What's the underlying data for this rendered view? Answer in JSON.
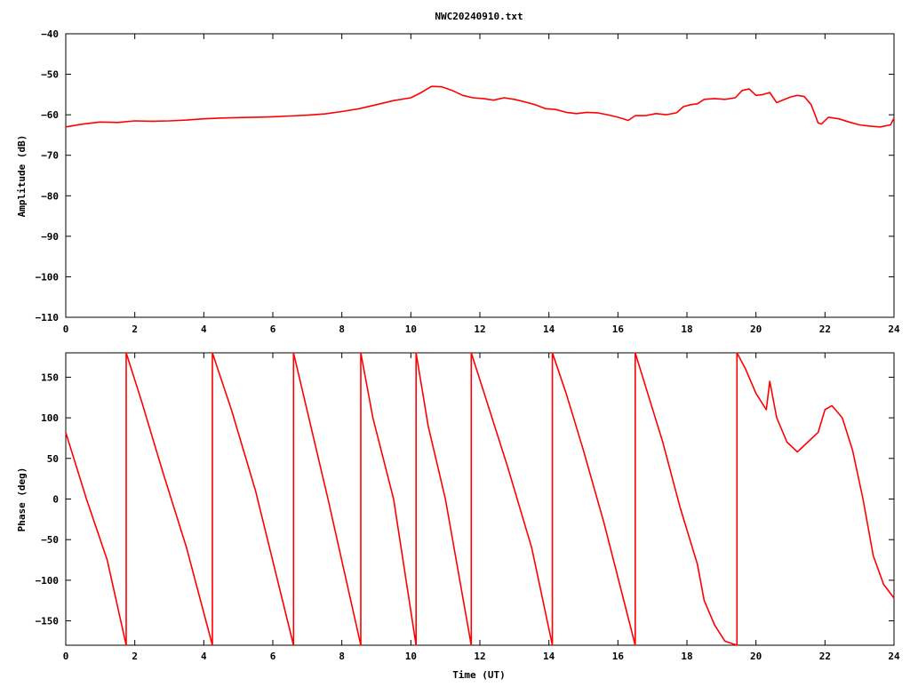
{
  "title": "NWC20240910.txt",
  "colors": {
    "trace": "#ff0000",
    "axes": "#000000",
    "background": "#ffffff"
  },
  "chart_data": [
    {
      "type": "line",
      "ylabel": "Amplitude (dB)",
      "xlabel": "",
      "xlim": [
        0,
        24
      ],
      "ylim": [
        -110,
        -40
      ],
      "xticks": [
        0,
        2,
        4,
        6,
        8,
        10,
        12,
        14,
        16,
        18,
        20,
        22,
        24
      ],
      "yticks": [
        -40,
        -50,
        -60,
        -70,
        -80,
        -90,
        -100,
        -110
      ],
      "grid": false,
      "series": [
        {
          "x": [
            0,
            0.5,
            1,
            1.5,
            2,
            2.5,
            3,
            3.5,
            4,
            4.5,
            5,
            5.5,
            6,
            6.5,
            7,
            7.5,
            8,
            8.5,
            9,
            9.5,
            10,
            10.3,
            10.6,
            10.9,
            11.2,
            11.5,
            11.8,
            12.1,
            12.4,
            12.7,
            13,
            13.3,
            13.6,
            13.9,
            14.2,
            14.5,
            14.8,
            15.1,
            15.4,
            15.7,
            16,
            16.3,
            16.5,
            16.8,
            17.1,
            17.4,
            17.7,
            17.9,
            18.1,
            18.3,
            18.5,
            18.8,
            19.1,
            19.4,
            19.6,
            19.8,
            20,
            20.2,
            20.4,
            20.6,
            20.8,
            21,
            21.2,
            21.4,
            21.6,
            21.8,
            21.9,
            22.1,
            22.4,
            22.7,
            23,
            23.3,
            23.6,
            23.9,
            24
          ],
          "y": [
            -63,
            -62.3,
            -61.8,
            -61.9,
            -61.5,
            -61.6,
            -61.5,
            -61.3,
            -61,
            -60.8,
            -60.7,
            -60.6,
            -60.5,
            -60.3,
            -60.1,
            -59.8,
            -59.2,
            -58.5,
            -57.5,
            -56.5,
            -55.8,
            -54.5,
            -53,
            -53.1,
            -54,
            -55.2,
            -55.8,
            -56,
            -56.4,
            -55.8,
            -56.2,
            -56.8,
            -57.5,
            -58.5,
            -58.7,
            -59.4,
            -59.7,
            -59.4,
            -59.5,
            -60,
            -60.6,
            -61.4,
            -60.2,
            -60.2,
            -59.7,
            -60,
            -59.5,
            -58,
            -57.5,
            -57.3,
            -56.2,
            -56,
            -56.2,
            -55.8,
            -54,
            -53.6,
            -55.2,
            -55,
            -54.5,
            -57,
            -56.3,
            -55.6,
            -55.2,
            -55.5,
            -57.5,
            -62,
            -62.3,
            -60.6,
            -61,
            -61.8,
            -62.5,
            -62.8,
            -63,
            -62.5,
            -60.8
          ]
        }
      ]
    },
    {
      "type": "line",
      "ylabel": "Phase (deg)",
      "xlabel": "Time (UT)",
      "xlim": [
        0,
        24
      ],
      "ylim": [
        -180,
        180
      ],
      "xticks": [
        0,
        2,
        4,
        6,
        8,
        10,
        12,
        14,
        16,
        18,
        20,
        22,
        24
      ],
      "yticks": [
        150,
        100,
        50,
        0,
        -50,
        -100,
        -150
      ],
      "grid": false,
      "series": [
        {
          "x": [
            0,
            0.6,
            1.2,
            1.75,
            1.75,
            2.2,
            2.8,
            3.5,
            4.25,
            4.25,
            4.8,
            5.5,
            6.6,
            6.6,
            7.1,
            7.6,
            8.55,
            8.55,
            8.9,
            9.5,
            10.15,
            10.15,
            10.5,
            11,
            11.75,
            11.75,
            12.2,
            12.8,
            13.5,
            14.1,
            14.1,
            14.5,
            15,
            15.6,
            16.5,
            16.5,
            16.9,
            17.3,
            17.8,
            18.3,
            18.5,
            18.8,
            19.1,
            19.45,
            19.45,
            19.7,
            20,
            20.3,
            20.4,
            20.6,
            20.9,
            21.2,
            21.5,
            21.8,
            22,
            22.2,
            22.5,
            22.8,
            23.1,
            23.4,
            23.7,
            24
          ],
          "y": [
            82,
            0,
            -75,
            -180,
            180,
            120,
            35,
            -60,
            -180,
            180,
            110,
            10,
            -180,
            180,
            90,
            0,
            -180,
            180,
            100,
            0,
            -180,
            180,
            90,
            0,
            -180,
            180,
            120,
            40,
            -60,
            -180,
            180,
            130,
            60,
            -30,
            -180,
            180,
            125,
            70,
            -10,
            -80,
            -125,
            -155,
            -175,
            -180,
            180,
            160,
            130,
            110,
            145,
            100,
            70,
            58,
            70,
            82,
            110,
            115,
            100,
            60,
            0,
            -70,
            -105,
            -122
          ]
        }
      ]
    }
  ]
}
